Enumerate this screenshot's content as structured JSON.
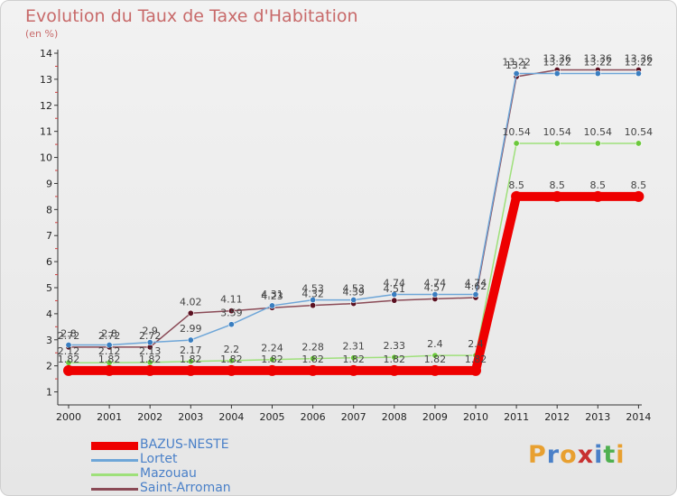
{
  "header": {
    "title": "Evolution du Taux de Taxe d'Habitation",
    "subtitle": "(en %)"
  },
  "logo": {
    "text": "Proxiti",
    "colors": [
      "#e8a030",
      "#4a80c8",
      "#e8a030",
      "#c83030",
      "#4a80c8",
      "#50b050",
      "#e8a030"
    ]
  },
  "colors": {
    "background": "#ececec",
    "title": "#c86a6a",
    "legend_text": "#4a80c8",
    "axis": "#333333"
  },
  "chart_data": {
    "type": "line",
    "x": [
      "2000",
      "2001",
      "2002",
      "2003",
      "2004",
      "2005",
      "2006",
      "2007",
      "2008",
      "2009",
      "2010",
      "2011",
      "2012",
      "2013",
      "2014"
    ],
    "ylim": [
      0.5,
      14
    ],
    "yticks": [
      "1",
      "2",
      "3",
      "4",
      "5",
      "6",
      "7",
      "8",
      "9",
      "10",
      "11",
      "12",
      "13",
      "14"
    ],
    "grid": false,
    "series": [
      {
        "name": "BAZUS-NESTE",
        "color": "#ee0000",
        "marker": "#ee0000",
        "thick": true,
        "values": [
          1.82,
          1.82,
          1.82,
          1.82,
          1.82,
          1.82,
          1.82,
          1.82,
          1.82,
          1.82,
          1.82,
          8.5,
          8.5,
          8.5,
          8.5
        ],
        "labels": [
          "1.82",
          "1.82",
          "1.82",
          "1.82",
          "1.82",
          "1.82",
          "1.82",
          "1.82",
          "1.82",
          "1.82",
          "1.82",
          "8.5",
          "8.5",
          "8.5",
          "8.5"
        ]
      },
      {
        "name": "Lortet",
        "color": "#6ea6d8",
        "marker": "#3a7ec0",
        "thick": false,
        "values": [
          2.8,
          2.8,
          2.9,
          2.99,
          3.59,
          4.31,
          4.53,
          4.53,
          4.74,
          4.74,
          4.74,
          13.22,
          13.22,
          13.22,
          13.22
        ],
        "labels": [
          "2.8",
          "2.8",
          "2.9",
          "2.99",
          "3.59",
          "4.31",
          "4.53",
          "4.53",
          "4.74",
          "4.74",
          "4.74",
          "13.22",
          "13.22",
          "13.22",
          "13.22"
        ]
      },
      {
        "name": "Mazouau",
        "color": "#9ee07a",
        "marker": "#6cc83c",
        "thick": false,
        "values": [
          2.12,
          2.12,
          2.13,
          2.17,
          2.2,
          2.24,
          2.28,
          2.31,
          2.33,
          2.4,
          2.4,
          10.54,
          10.54,
          10.54,
          10.54
        ],
        "labels": [
          "2.12",
          "2.12",
          "2.13",
          "2.17",
          "2.2",
          "2.24",
          "2.28",
          "2.31",
          "2.33",
          "2.4",
          "2.4",
          "10.54",
          "10.54",
          "10.54",
          "10.54"
        ]
      },
      {
        "name": "Saint-Arroman",
        "color": "#8a4a56",
        "marker": "#5a1020",
        "thick": false,
        "values": [
          2.72,
          2.72,
          2.72,
          4.02,
          4.11,
          4.23,
          4.32,
          4.39,
          4.51,
          4.57,
          4.62,
          13.1,
          13.36,
          13.36,
          13.36
        ],
        "labels": [
          "2.72",
          "2.72",
          "2.72",
          "4.02",
          "4.11",
          "4.23",
          "4.32",
          "4.39",
          "4.51",
          "4.57",
          "4.62",
          "13.1",
          "13.36",
          "13.36",
          "13.36"
        ]
      }
    ]
  }
}
